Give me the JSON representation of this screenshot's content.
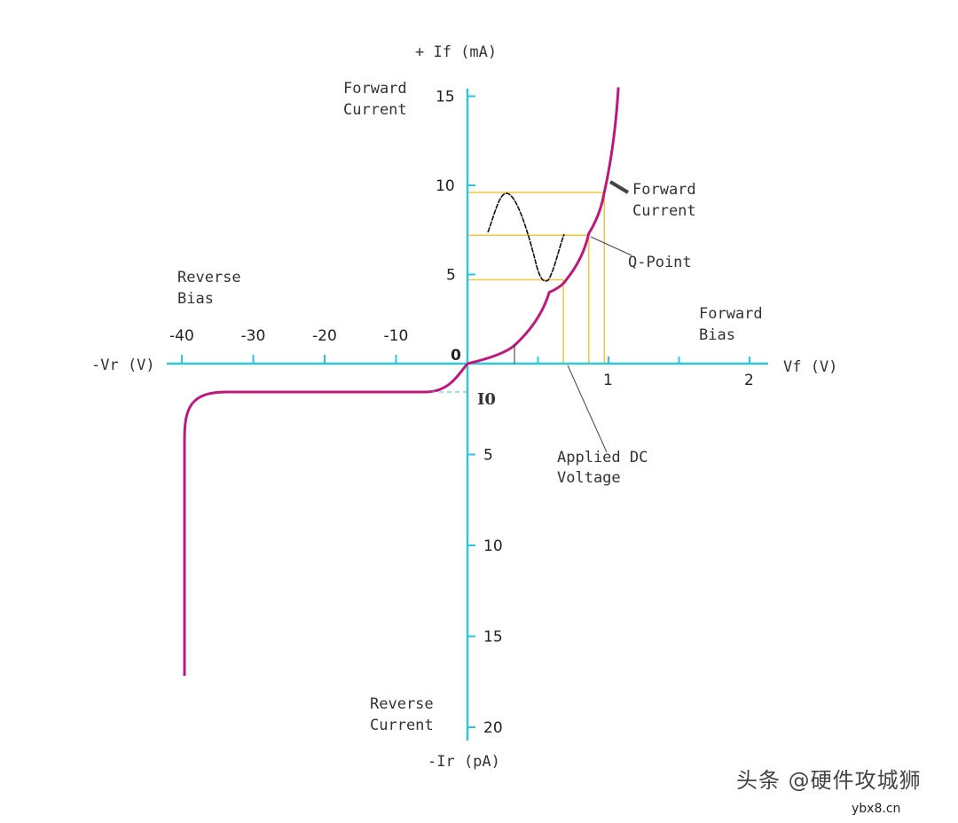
{
  "chart_data": {
    "type": "line",
    "title": "",
    "y_axis_top_label": "+ If (mA)",
    "y_axis_bottom_label": "-Ir (pA)",
    "x_axis_right_label": "Vf (V)",
    "x_axis_left_label": "-Vr (V)",
    "origin_label": "0",
    "x_ticks_forward": [
      "1",
      "2"
    ],
    "x_ticks_reverse": [
      "-10",
      "-20",
      "-30",
      "-40"
    ],
    "y_ticks_forward": [
      "5",
      "10",
      "15"
    ],
    "y_ticks_reverse": [
      "5",
      "10",
      "15",
      "20"
    ],
    "annotations": {
      "forward_current_axis": [
        "Forward",
        "Current"
      ],
      "forward_current_curve": [
        "Forward",
        "Current"
      ],
      "reverse_bias": [
        "Reverse",
        "Bias"
      ],
      "forward_bias": [
        "Forward",
        "Bias"
      ],
      "reverse_current": [
        "Reverse",
        "Current"
      ],
      "q_point": "Q-Point",
      "applied_dc": [
        "Applied DC",
        "Voltage"
      ],
      "saturation_current": "I0"
    },
    "forward_curve": {
      "x": [
        0,
        0.33,
        0.58,
        0.7,
        0.86,
        0.97,
        1.07
      ],
      "y": [
        0,
        1,
        4,
        4.7,
        7.3,
        9.6,
        15.5
      ]
    },
    "q_levels": {
      "x": [
        0.68,
        0.86,
        0.97
      ],
      "y": [
        4.7,
        7.2,
        9.6
      ]
    },
    "colors": {
      "axis": "#2ec6dc",
      "curve": "#c0187a",
      "guides": "#f5c542"
    }
  },
  "watermark": {
    "text": "头条 @硬件攻城狮",
    "sub": "ybx8.cn"
  }
}
